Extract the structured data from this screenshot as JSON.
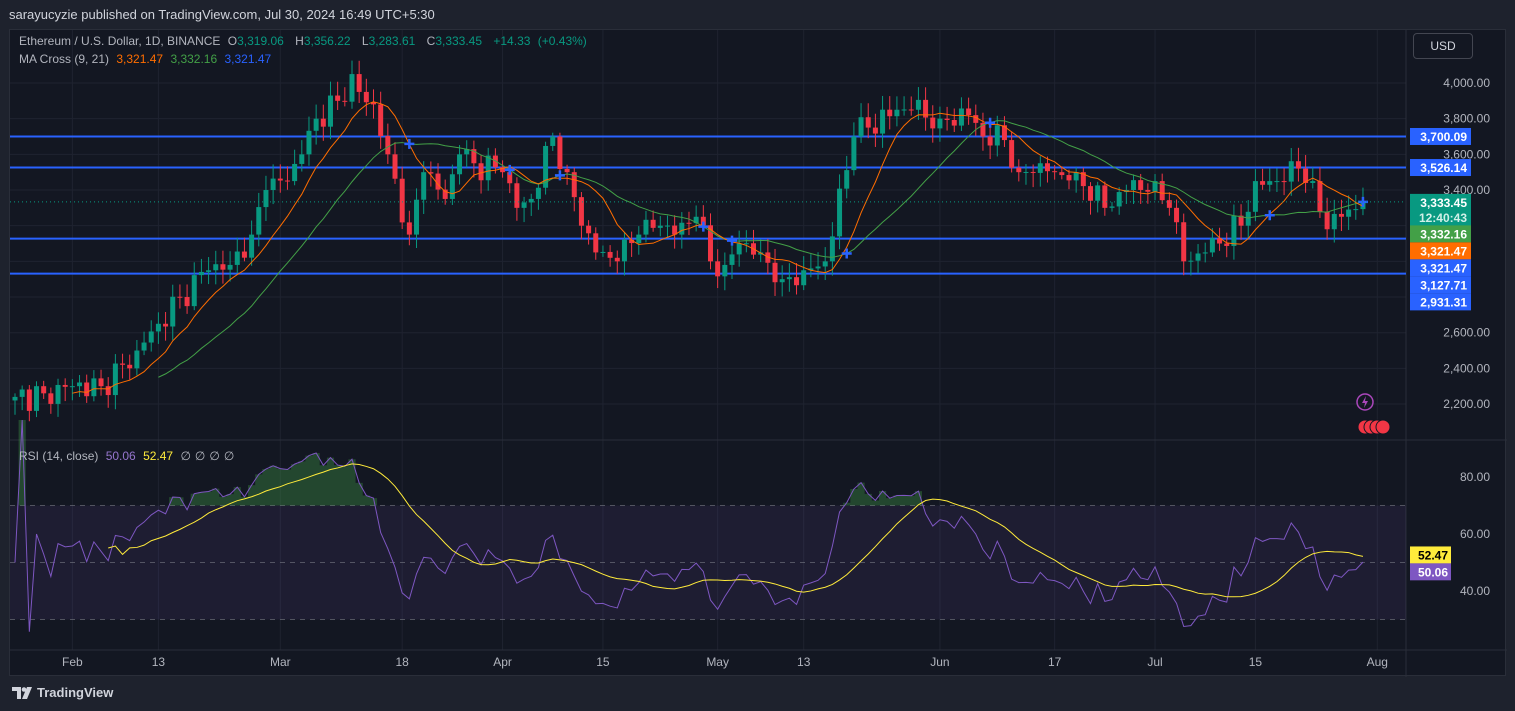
{
  "header": {
    "published": "sarayucyzie published on TradingView.com, Jul 30, 2024 16:49 UTC+5:30"
  },
  "legend": {
    "symbol": "Ethereum / U.S. Dollar, 1D, BINANCE",
    "o_label": "O",
    "o": "3,319.06",
    "h_label": "H",
    "h": "3,356.22",
    "l_label": "L",
    "l": "3,283.61",
    "c_label": "C",
    "c": "3,333.45",
    "change": "+14.33",
    "change_pct": "(+0.43%)",
    "ma_name": "MA Cross (9, 21)",
    "ma1": "3,321.47",
    "ma2": "3,332.16",
    "ma3": "3,321.47",
    "rsi_name": "RSI (14, close)",
    "rsi": "50.06",
    "rsi_ma": "52.47",
    "rsi_extra": [
      "∅",
      "∅",
      "∅",
      "∅"
    ]
  },
  "currency_button": "USD",
  "footer": {
    "brand": "TradingView"
  },
  "colors": {
    "up": "#089981",
    "down": "#f23645",
    "ma9": "#ff6d00",
    "ma21": "#43a047",
    "levels": "#2962ff",
    "rsi": "#7e57c2",
    "rsi_ma": "#ffeb3b"
  },
  "chart_data": {
    "type": "candlestick",
    "title": "Ethereum / U.S. Dollar, 1D, BINANCE",
    "start_date": "2024-01-24",
    "end_date": "2024-07-30",
    "approx_closes": [
      [
        "01-24",
        2240
      ],
      [
        "01-28",
        2260
      ],
      [
        "02-01",
        2300
      ],
      [
        "02-05",
        2300
      ],
      [
        "02-08",
        2420
      ],
      [
        "02-10",
        2500
      ],
      [
        "02-13",
        2650
      ],
      [
        "02-16",
        2800
      ],
      [
        "02-20",
        2950
      ],
      [
        "02-23",
        2980
      ],
      [
        "02-26",
        3150
      ],
      [
        "02-28",
        3400
      ],
      [
        "03-02",
        3450
      ],
      [
        "03-04",
        3600
      ],
      [
        "03-06",
        3800
      ],
      [
        "03-09",
        3900
      ],
      [
        "03-11",
        4050
      ],
      [
        "03-12",
        3950
      ],
      [
        "03-14",
        3880
      ],
      [
        "03-16",
        3600
      ],
      [
        "03-19",
        3150
      ],
      [
        "03-21",
        3500
      ],
      [
        "03-24",
        3350
      ],
      [
        "03-26",
        3600
      ],
      [
        "03-28",
        3550
      ],
      [
        "04-01",
        3500
      ],
      [
        "04-03",
        3300
      ],
      [
        "04-05",
        3350
      ],
      [
        "04-08",
        3700
      ],
      [
        "04-10",
        3500
      ],
      [
        "04-12",
        3200
      ],
      [
        "04-14",
        3050
      ],
      [
        "04-17",
        3000
      ],
      [
        "04-20",
        3150
      ],
      [
        "04-23",
        3200
      ],
      [
        "04-25",
        3150
      ],
      [
        "04-28",
        3250
      ],
      [
        "04-30",
        3000
      ],
      [
        "05-02",
        2980
      ],
      [
        "05-04",
        3100
      ],
      [
        "05-07",
        3050
      ],
      [
        "05-10",
        2900
      ],
      [
        "05-13",
        2950
      ],
      [
        "05-16",
        3000
      ],
      [
        "05-20",
        3700
      ],
      [
        "05-22",
        3750
      ],
      [
        "05-26",
        3850
      ],
      [
        "05-28",
        3850
      ],
      [
        "06-01",
        3800
      ],
      [
        "06-05",
        3820
      ],
      [
        "06-07",
        3700
      ],
      [
        "06-10",
        3680
      ],
      [
        "06-12",
        3500
      ],
      [
        "06-15",
        3550
      ],
      [
        "06-17",
        3500
      ],
      [
        "06-20",
        3500
      ],
      [
        "06-24",
        3300
      ],
      [
        "06-27",
        3400
      ],
      [
        "07-01",
        3450
      ],
      [
        "07-03",
        3300
      ],
      [
        "07-05",
        3000
      ],
      [
        "07-08",
        3050
      ],
      [
        "07-10",
        3100
      ],
      [
        "07-13",
        3200
      ],
      [
        "07-15",
        3450
      ],
      [
        "07-18",
        3450
      ],
      [
        "07-21",
        3520
      ],
      [
        "07-23",
        3450
      ],
      [
        "07-25",
        3180
      ],
      [
        "07-27",
        3250
      ],
      [
        "07-30",
        3333.45
      ]
    ],
    "horizontal_levels": [
      3700.09,
      3526.14,
      3127.71,
      2931.31
    ],
    "price_tags": [
      {
        "label": "3,700.09",
        "color": "#2962ff"
      },
      {
        "label": "3,526.14",
        "color": "#2962ff"
      },
      {
        "label": "3,333.45",
        "sub": "12:40:43",
        "color": "#089981"
      },
      {
        "label": "3,332.16",
        "color": "#43a047"
      },
      {
        "label": "3,321.47",
        "color": "#ff6d00"
      },
      {
        "label": "3,321.47",
        "color": "#2962ff"
      },
      {
        "label": "3,127.71",
        "color": "#2962ff"
      },
      {
        "label": "2,931.31",
        "color": "#2962ff"
      }
    ],
    "y_ticks": [
      "4,000.00",
      "3,800.00",
      "3,600.00",
      "3,400.00",
      "2,600.00",
      "2,400.00",
      "2,200.00"
    ],
    "y_tick_values": [
      4000,
      3800,
      3600,
      3400,
      2600,
      2400,
      2200
    ],
    "ylim": [
      2100,
      4150
    ],
    "x_ticks": [
      [
        "Feb",
        "02-01"
      ],
      [
        "13",
        "02-13"
      ],
      [
        "Mar",
        "03-01"
      ],
      [
        "18",
        "03-18"
      ],
      [
        "Apr",
        "04-01"
      ],
      [
        "15",
        "04-15"
      ],
      [
        "May",
        "05-01"
      ],
      [
        "13",
        "05-13"
      ],
      [
        "Jun",
        "06-01"
      ],
      [
        "17",
        "06-17"
      ],
      [
        "Jul",
        "07-01"
      ],
      [
        "15",
        "07-15"
      ],
      [
        "Aug",
        "08-01"
      ]
    ],
    "rsi": {
      "y_ticks": [
        "80.00",
        "60.00",
        "40.00"
      ],
      "y_tick_values": [
        80,
        60,
        40
      ],
      "bands": [
        70,
        50,
        30
      ],
      "ylim": [
        25,
        90
      ],
      "tags": [
        {
          "label": "52.47",
          "color": "#ffeb3b"
        },
        {
          "label": "50.06",
          "color": "#7e57c2"
        }
      ]
    }
  }
}
